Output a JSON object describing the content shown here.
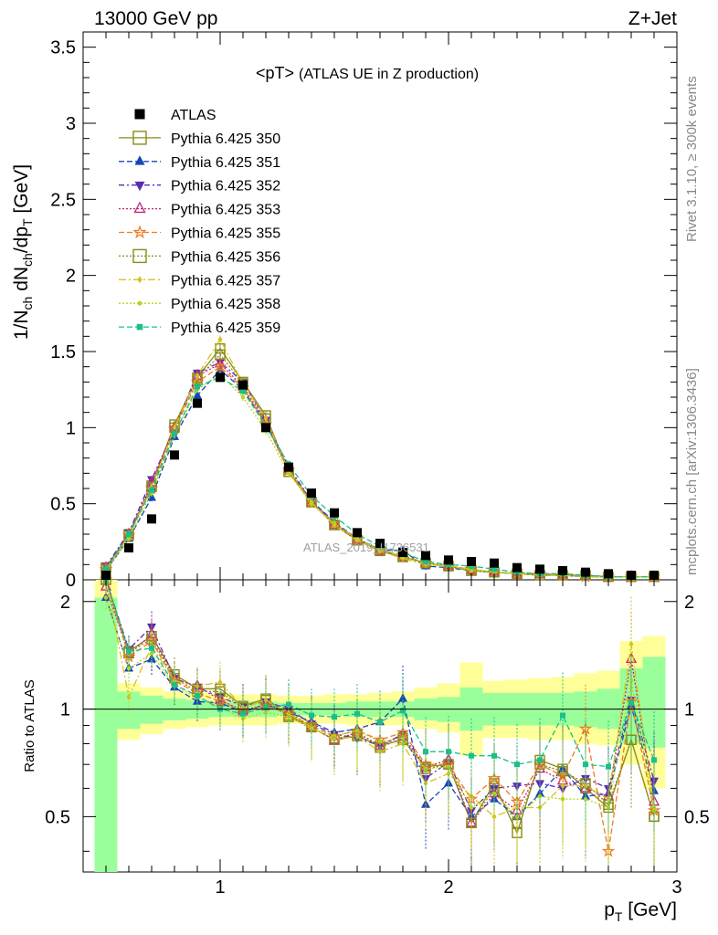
{
  "header": {
    "left": "13000 GeV pp",
    "right": "Z+Jet",
    "title_main": "<pT>",
    "title_sub": "(ATLAS UE in Z production)"
  },
  "side_texts": {
    "rivet": "Rivet 3.1.10, ≥ 300k events",
    "mcplots": "mcplots.cern.ch [arXiv:1306.3436]"
  },
  "watermark": "ATLAS_2019_I1736531",
  "chart_data": [
    {
      "type": "line",
      "panel": "main",
      "ylabel": "1/N_ch dN_ch/dp_T [GeV]",
      "xlim": [
        0.4,
        3.0
      ],
      "ylim": [
        0,
        3.6
      ],
      "y_ticks": [
        "0",
        "0.5",
        "1",
        "1.5",
        "2",
        "2.5",
        "3",
        "3.5"
      ],
      "x": [
        0.5,
        0.6,
        0.7,
        0.8,
        0.9,
        1.0,
        1.1,
        1.2,
        1.3,
        1.4,
        1.5,
        1.6,
        1.7,
        1.8,
        1.9,
        2.0,
        2.1,
        2.2,
        2.3,
        2.4,
        2.5,
        2.6,
        2.7,
        2.8,
        2.9
      ],
      "data_series": {
        "name": "ATLAS",
        "values": [
          0.03,
          0.21,
          0.4,
          0.82,
          1.16,
          1.33,
          1.28,
          1.0,
          0.74,
          0.57,
          0.44,
          0.31,
          0.24,
          0.18,
          0.16,
          0.13,
          0.12,
          0.11,
          0.08,
          0.07,
          0.06,
          0.05,
          0.04,
          0.03,
          0.03
        ]
      },
      "series": [
        {
          "name": "Pythia 6.425 350",
          "color": "#8b8b1a",
          "dash": "",
          "marker": "square-open",
          "values": [
            0.08,
            0.3,
            0.62,
            1.02,
            1.33,
            1.52,
            1.3,
            1.08,
            0.71,
            0.51,
            0.36,
            0.26,
            0.19,
            0.15,
            0.11,
            0.09,
            0.06,
            0.05,
            0.04,
            0.03,
            0.03,
            0.03,
            0.02,
            0.02,
            0.02
          ]
        },
        {
          "name": "Pythia 6.425 351",
          "color": "#1546b8",
          "dash": "6,3",
          "marker": "triangle-up",
          "values": [
            0.06,
            0.27,
            0.54,
            0.94,
            1.21,
            1.38,
            1.25,
            1.03,
            0.72,
            0.52,
            0.38,
            0.27,
            0.2,
            0.19,
            0.09,
            0.08,
            0.06,
            0.05,
            0.04,
            0.03,
            0.03,
            0.02,
            0.02,
            0.02,
            0.02
          ]
        },
        {
          "name": "Pythia 6.425 352",
          "color": "#5b2ab5",
          "dash": "6,3,2,3",
          "marker": "triangle-down",
          "values": [
            0.09,
            0.31,
            0.66,
            0.99,
            1.36,
            1.43,
            1.3,
            1.05,
            0.74,
            0.52,
            0.37,
            0.26,
            0.19,
            0.15,
            0.11,
            0.09,
            0.06,
            0.05,
            0.04,
            0.04,
            0.03,
            0.02,
            0.02,
            0.02,
            0.02
          ]
        },
        {
          "name": "Pythia 6.425 353",
          "color": "#c0267a",
          "dash": "2,2",
          "marker": "triangle-open",
          "values": [
            0.08,
            0.3,
            0.64,
            1.0,
            1.34,
            1.42,
            1.27,
            1.04,
            0.73,
            0.51,
            0.36,
            0.26,
            0.19,
            0.15,
            0.11,
            0.09,
            0.06,
            0.05,
            0.04,
            0.04,
            0.03,
            0.03,
            0.02,
            0.02,
            0.02
          ]
        },
        {
          "name": "Pythia 6.425 355",
          "color": "#f07a1e",
          "dash": "6,3",
          "marker": "star-open",
          "values": [
            0.07,
            0.29,
            0.6,
            0.99,
            1.3,
            1.4,
            1.26,
            1.02,
            0.72,
            0.51,
            0.37,
            0.27,
            0.2,
            0.16,
            0.11,
            0.09,
            0.07,
            0.05,
            0.04,
            0.04,
            0.03,
            0.02,
            0.02,
            0.02,
            0.02
          ]
        },
        {
          "name": "Pythia 6.425 356",
          "color": "#8b8b1a",
          "dash": "2,2",
          "marker": "square-open",
          "values": [
            0.07,
            0.29,
            0.61,
            1.0,
            1.32,
            1.48,
            1.29,
            1.06,
            0.71,
            0.51,
            0.36,
            0.26,
            0.19,
            0.15,
            0.11,
            0.09,
            0.06,
            0.05,
            0.04,
            0.03,
            0.03,
            0.03,
            0.02,
            0.02,
            0.02
          ]
        },
        {
          "name": "Pythia 6.425 357",
          "color": "#d6c21a",
          "dash": "8,3,2,3",
          "marker": "diamond-small",
          "values": [
            0.07,
            0.29,
            0.61,
            1.0,
            1.34,
            1.58,
            1.29,
            1.06,
            0.72,
            0.51,
            0.36,
            0.26,
            0.19,
            0.14,
            0.1,
            0.09,
            0.07,
            0.05,
            0.04,
            0.03,
            0.03,
            0.02,
            0.02,
            0.02,
            0.02
          ]
        },
        {
          "name": "Pythia 6.425 358",
          "color": "#b5d61a",
          "dash": "2,2",
          "marker": "dot",
          "values": [
            0.06,
            0.27,
            0.57,
            0.95,
            1.25,
            1.35,
            1.2,
            0.98,
            0.7,
            0.5,
            0.37,
            0.27,
            0.2,
            0.15,
            0.11,
            0.09,
            0.06,
            0.05,
            0.04,
            0.03,
            0.03,
            0.02,
            0.02,
            0.02,
            0.02
          ]
        },
        {
          "name": "Pythia 6.425 359",
          "color": "#1abf8a",
          "dash": "6,3",
          "marker": "square-small",
          "values": [
            0.07,
            0.3,
            0.59,
            0.96,
            1.27,
            1.33,
            1.24,
            1.01,
            0.76,
            0.55,
            0.42,
            0.3,
            0.22,
            0.18,
            0.12,
            0.1,
            0.09,
            0.07,
            0.05,
            0.04,
            0.04,
            0.03,
            0.02,
            0.02,
            0.02
          ]
        }
      ]
    },
    {
      "type": "line",
      "panel": "ratio",
      "ylabel": "Ratio to ATLAS",
      "xlabel": "p_T [GeV]",
      "xlim": [
        0.4,
        3.0
      ],
      "ylim": [
        0.35,
        2.3
      ],
      "log_y": true,
      "y_ticks": [
        "0.5",
        "1",
        "2"
      ],
      "x_ticks": [
        "1",
        "2",
        "3"
      ],
      "bands": {
        "x_edges": [
          0.45,
          0.55,
          0.65,
          0.75,
          0.85,
          0.95,
          1.05,
          1.15,
          1.25,
          1.35,
          1.45,
          1.55,
          1.65,
          1.75,
          1.85,
          1.95,
          2.05,
          2.15,
          2.25,
          2.35,
          2.45,
          2.55,
          2.65,
          2.75,
          2.85,
          2.95
        ],
        "green_lo": [
          0.3,
          0.88,
          0.91,
          0.93,
          0.94,
          0.95,
          0.95,
          0.95,
          0.96,
          0.96,
          0.96,
          0.95,
          0.95,
          0.95,
          0.93,
          0.92,
          0.87,
          0.9,
          0.9,
          0.9,
          0.9,
          0.89,
          0.88,
          0.8,
          0.78
        ],
        "green_hi": [
          2.05,
          1.12,
          1.09,
          1.07,
          1.06,
          1.05,
          1.05,
          1.05,
          1.04,
          1.04,
          1.04,
          1.05,
          1.05,
          1.05,
          1.07,
          1.08,
          1.15,
          1.11,
          1.11,
          1.11,
          1.11,
          1.12,
          1.14,
          1.3,
          1.4
        ],
        "yellow_lo": [
          0.3,
          0.82,
          0.85,
          0.88,
          0.89,
          0.9,
          0.9,
          0.9,
          0.91,
          0.91,
          0.91,
          0.9,
          0.9,
          0.9,
          0.88,
          0.86,
          0.74,
          0.83,
          0.83,
          0.82,
          0.82,
          0.8,
          0.79,
          0.7,
          0.6
        ],
        "yellow_hi": [
          2.4,
          1.18,
          1.15,
          1.12,
          1.11,
          1.1,
          1.1,
          1.1,
          1.09,
          1.09,
          1.1,
          1.1,
          1.11,
          1.12,
          1.15,
          1.18,
          1.35,
          1.2,
          1.21,
          1.22,
          1.23,
          1.26,
          1.28,
          1.55,
          1.6
        ]
      },
      "series": [
        {
          "name": "Pythia 6.425 350",
          "values": [
            2.5,
            1.45,
            1.6,
            1.25,
            1.14,
            1.14,
            1.02,
            1.07,
            0.96,
            0.89,
            0.82,
            0.84,
            0.79,
            0.82,
            0.69,
            0.7,
            0.48,
            0.62,
            0.45,
            0.72,
            0.68,
            0.6,
            0.53,
            0.82,
            0.5
          ]
        },
        {
          "name": "Pythia 6.425 351",
          "values": [
            2.05,
            1.3,
            1.38,
            1.15,
            1.05,
            1.04,
            0.98,
            1.03,
            0.98,
            0.92,
            0.86,
            0.88,
            0.92,
            1.07,
            0.54,
            0.62,
            0.5,
            0.56,
            0.5,
            0.58,
            0.68,
            0.57,
            0.58,
            1.02,
            0.59
          ]
        },
        {
          "name": "Pythia 6.425 352",
          "values": [
            2.35,
            1.47,
            1.7,
            1.22,
            1.15,
            1.08,
            1.02,
            1.05,
            1.0,
            0.91,
            0.85,
            0.83,
            0.79,
            0.85,
            0.64,
            0.71,
            0.52,
            0.6,
            0.61,
            0.62,
            0.6,
            0.64,
            0.6,
            1.06,
            0.63
          ]
        },
        {
          "name": "Pythia 6.425 353",
          "values": [
            2.2,
            1.42,
            1.62,
            1.21,
            1.16,
            1.06,
            0.99,
            1.03,
            0.98,
            0.89,
            0.82,
            0.86,
            0.79,
            0.84,
            0.69,
            0.72,
            0.48,
            0.58,
            0.52,
            0.68,
            0.63,
            0.6,
            0.57,
            1.38,
            0.55
          ]
        },
        {
          "name": "Pythia 6.425 355",
          "values": [
            2.3,
            1.4,
            1.55,
            1.2,
            1.11,
            1.05,
            0.99,
            1.02,
            0.97,
            0.9,
            0.84,
            0.87,
            0.82,
            0.86,
            0.7,
            0.7,
            0.56,
            0.64,
            0.55,
            0.7,
            0.65,
            0.88,
            0.4,
            1.05,
            0.52
          ]
        },
        {
          "name": "Pythia 6.425 356",
          "values": [
            2.45,
            1.44,
            1.57,
            1.22,
            1.12,
            1.12,
            1.01,
            1.06,
            0.95,
            0.89,
            0.82,
            0.85,
            0.78,
            0.83,
            0.68,
            0.7,
            0.48,
            0.6,
            0.48,
            0.7,
            0.67,
            0.62,
            0.54,
            0.82,
            0.5
          ]
        },
        {
          "name": "Pythia 6.425 357",
          "values": [
            2.3,
            1.08,
            1.5,
            1.2,
            1.16,
            1.19,
            1.01,
            1.06,
            0.97,
            0.89,
            0.82,
            0.84,
            0.76,
            0.8,
            0.62,
            0.66,
            0.57,
            0.5,
            0.53,
            0.53,
            0.61,
            0.61,
            0.56,
            1.52,
            0.53
          ]
        },
        {
          "name": "Pythia 6.425 358",
          "values": [
            2.05,
            1.3,
            1.43,
            1.16,
            1.08,
            1.01,
            0.94,
            0.98,
            0.95,
            0.88,
            0.84,
            0.87,
            0.81,
            0.83,
            0.68,
            0.69,
            0.53,
            0.58,
            0.5,
            0.57,
            0.56,
            0.56,
            0.53,
            1.2,
            0.52
          ]
        },
        {
          "name": "Pythia 6.425 359",
          "values": [
            2.3,
            1.45,
            1.48,
            1.17,
            1.09,
            1.0,
            0.97,
            1.01,
            1.03,
            0.96,
            0.95,
            0.97,
            0.92,
            0.99,
            0.76,
            0.76,
            0.74,
            0.74,
            0.7,
            0.72,
            0.96,
            0.7,
            0.69,
            1.04,
            0.72
          ]
        }
      ]
    }
  ]
}
